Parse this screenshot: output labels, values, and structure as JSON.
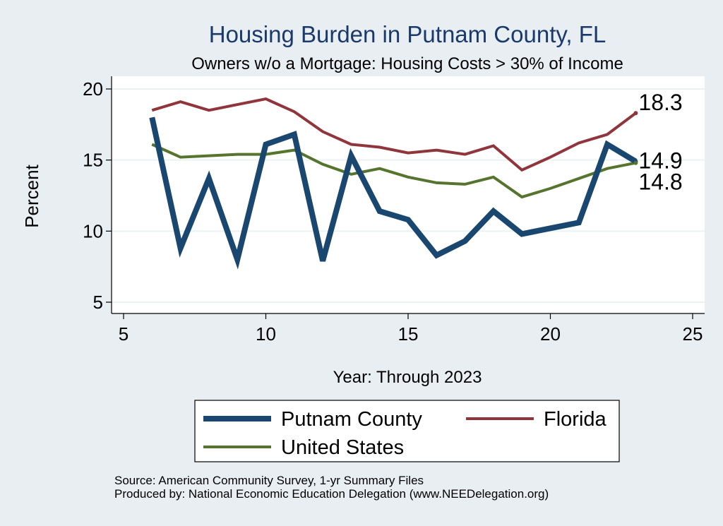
{
  "chart_data": {
    "type": "line",
    "title": "Housing Burden in Putnam County, FL",
    "subtitle": "Owners w/o a Mortgage: Housing Costs > 30% of Income",
    "xlabel": "Year: Through 2023",
    "ylabel": "Percent",
    "xlim": [
      5,
      25
    ],
    "ylim": [
      5,
      20
    ],
    "x_ticks": [
      5,
      10,
      15,
      20,
      25
    ],
    "y_ticks": [
      5,
      10,
      15,
      20
    ],
    "grid": true,
    "x": [
      6,
      7,
      8,
      9,
      10,
      11,
      12,
      13,
      14,
      15,
      16,
      17,
      18,
      19,
      20,
      21,
      22,
      23
    ],
    "series": [
      {
        "name": "Putnam County",
        "color": "#1a476f",
        "values": [
          18.0,
          8.8,
          13.7,
          8.0,
          16.1,
          16.8,
          7.9,
          15.3,
          11.4,
          10.8,
          8.3,
          9.3,
          11.4,
          9.8,
          10.2,
          10.6,
          16.1,
          14.9
        ],
        "end_label": "14.9"
      },
      {
        "name": "Florida",
        "color": "#90353b",
        "values": [
          18.5,
          19.1,
          18.5,
          18.9,
          19.3,
          18.4,
          17.0,
          16.1,
          15.9,
          15.5,
          15.7,
          15.4,
          16.0,
          14.3,
          15.2,
          16.2,
          16.8,
          18.3
        ],
        "end_label": "18.3"
      },
      {
        "name": "United States",
        "color": "#55752f",
        "values": [
          16.1,
          15.2,
          15.3,
          15.4,
          15.4,
          15.7,
          14.7,
          14.0,
          14.4,
          13.8,
          13.4,
          13.3,
          13.8,
          12.4,
          13.0,
          13.7,
          14.4,
          14.8
        ],
        "end_label": "14.8"
      }
    ],
    "legend_position": "bottom"
  },
  "source_lines": [
    "Source: American Community Survey, 1-yr Summary Files",
    "Produced by: National Economic Education Delegation (www.NEEDelegation.org)"
  ]
}
